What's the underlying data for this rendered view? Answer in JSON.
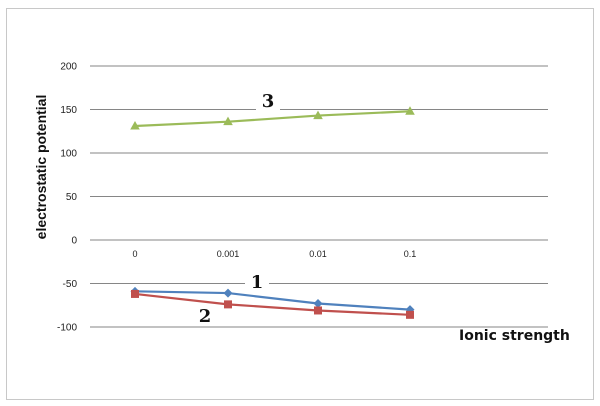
{
  "chart_data": {
    "type": "line",
    "title": "",
    "xlabel": "Ionic strength",
    "ylabel": "electrostatic potential",
    "categories": [
      "0",
      "0.001",
      "0.01",
      "0.1"
    ],
    "ylim": [
      -100,
      200
    ],
    "yticks": [
      200,
      150,
      100,
      50,
      0,
      -50,
      -100
    ],
    "grid": true,
    "legend": "none",
    "series": [
      {
        "label": "1",
        "color": "#4f81bd",
        "marker": "diamond",
        "values": [
          -59,
          -61,
          -73,
          -80
        ]
      },
      {
        "label": "2",
        "color": "#c0504d",
        "marker": "square",
        "values": [
          -62,
          -74,
          -81,
          -86
        ]
      },
      {
        "label": "3",
        "color": "#9bbb59",
        "marker": "triangle",
        "values": [
          131,
          136,
          143,
          148
        ]
      }
    ]
  }
}
